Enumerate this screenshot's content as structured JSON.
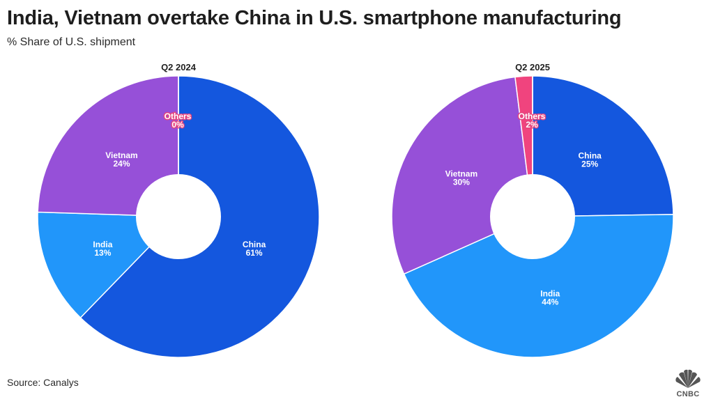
{
  "header": {
    "title": "India, Vietnam overtake China in U.S. smartphone manufacturing",
    "subtitle": "% Share of U.S. shipment"
  },
  "footer": {
    "source": "Source: Canalys",
    "logo_text": "CNBC"
  },
  "colors": {
    "China": "#1457de",
    "India": "#2196fa",
    "Vietnam": "#9650d8",
    "Others": "#f0447e",
    "logo": "#555555"
  },
  "chart_data": [
    {
      "type": "pie",
      "title": "Q2 2024",
      "donut": true,
      "slices": [
        {
          "label": "China",
          "value": 61,
          "display": "61%"
        },
        {
          "label": "India",
          "value": 13,
          "display": "13%"
        },
        {
          "label": "Vietnam",
          "value": 24,
          "display": "24%"
        },
        {
          "label": "Others",
          "value": 0,
          "display": "0%"
        }
      ]
    },
    {
      "type": "pie",
      "title": "Q2 2025",
      "donut": true,
      "slices": [
        {
          "label": "China",
          "value": 25,
          "display": "25%"
        },
        {
          "label": "India",
          "value": 44,
          "display": "44%"
        },
        {
          "label": "Vietnam",
          "value": 30,
          "display": "30%"
        },
        {
          "label": "Others",
          "value": 2,
          "display": "2%"
        }
      ]
    }
  ]
}
